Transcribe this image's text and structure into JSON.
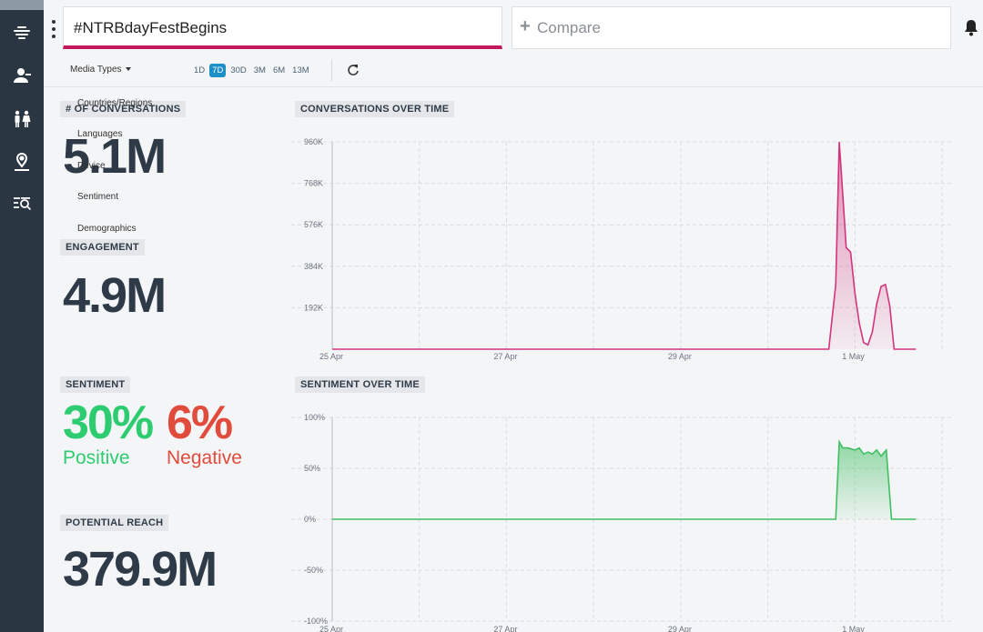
{
  "search": {
    "query": "#NTRBdayFestBegins"
  },
  "compare": {
    "label": "Compare"
  },
  "toolbar": {
    "media_types_label": "Media Types",
    "ranges": [
      "1D",
      "7D",
      "30D",
      "3M",
      "6M",
      "13M"
    ],
    "active_range": "7D"
  },
  "filters_menu": [
    "Countries/Regions",
    "Languages",
    "Device",
    "Sentiment",
    "Demographics"
  ],
  "metrics": {
    "conversations": {
      "label": "# OF CONVERSATIONS",
      "value": "5.1M"
    },
    "engagement": {
      "label": "ENGAGEMENT",
      "value": "4.9M"
    },
    "sentiment": {
      "label": "SENTIMENT",
      "positive_value": "30%",
      "positive_label": "Positive",
      "negative_value": "6%",
      "negative_label": "Negative"
    },
    "reach": {
      "label": "POTENTIAL REACH",
      "value": "379.9M"
    }
  },
  "colors": {
    "sidebar": "#2b3643",
    "accent": "#c2185b",
    "positive": "#2ecc71",
    "negative": "#e04b3c",
    "active_range": "#1b8fc7"
  },
  "icons": [
    "brand-icon",
    "user-icon",
    "people-icon",
    "location-icon",
    "search-list-icon",
    "bell-icon",
    "refresh-icon"
  ],
  "chart_data": [
    {
      "type": "area",
      "title": "CONVERSATIONS OVER TIME",
      "x_tick_labels": [
        "25 Apr",
        "27 Apr",
        "29 Apr",
        "1 May"
      ],
      "y_tick_labels": [
        "192K",
        "384K",
        "576K",
        "768K",
        "960K"
      ],
      "ylim": [
        0,
        960000
      ],
      "x": [
        25.0,
        26.0,
        27.0,
        28.0,
        29.0,
        30.0,
        30.7,
        30.78,
        30.82,
        30.86,
        30.9,
        30.95,
        31.0,
        31.05,
        31.1,
        31.15,
        31.2,
        31.25,
        31.3,
        31.35,
        31.4,
        31.45,
        31.5,
        31.6,
        31.7
      ],
      "x_units": "days (Apr 25 = 25; 1 May = 31)",
      "series": [
        {
          "values": [
            0,
            0,
            0,
            0,
            0,
            0,
            0,
            300000,
            960000,
            720000,
            470000,
            450000,
            260000,
            120000,
            30000,
            20000,
            80000,
            210000,
            290000,
            300000,
            200000,
            0,
            0,
            0,
            0
          ]
        }
      ],
      "grid": true
    },
    {
      "type": "area",
      "title": "SENTIMENT OVER TIME",
      "x_tick_labels": [
        "25 Apr",
        "27 Apr",
        "29 Apr",
        "1 May"
      ],
      "y_tick_labels": [
        "100%",
        "50%",
        "0%",
        "-50%",
        "-100%"
      ],
      "ylim": [
        -100,
        100
      ],
      "x": [
        25.0,
        26.0,
        27.0,
        28.0,
        29.0,
        30.0,
        30.7,
        30.78,
        30.82,
        30.86,
        30.92,
        31.0,
        31.05,
        31.1,
        31.15,
        31.2,
        31.25,
        31.3,
        31.36,
        31.42,
        31.5,
        31.7
      ],
      "x_units": "days (Apr 25 = 25; 1 May = 31)",
      "series": [
        {
          "values": [
            0,
            0,
            0,
            0,
            0,
            0,
            0,
            0,
            76,
            70,
            70,
            68,
            70,
            64,
            66,
            64,
            68,
            62,
            68,
            0,
            0,
            0
          ]
        }
      ],
      "grid": true
    }
  ]
}
